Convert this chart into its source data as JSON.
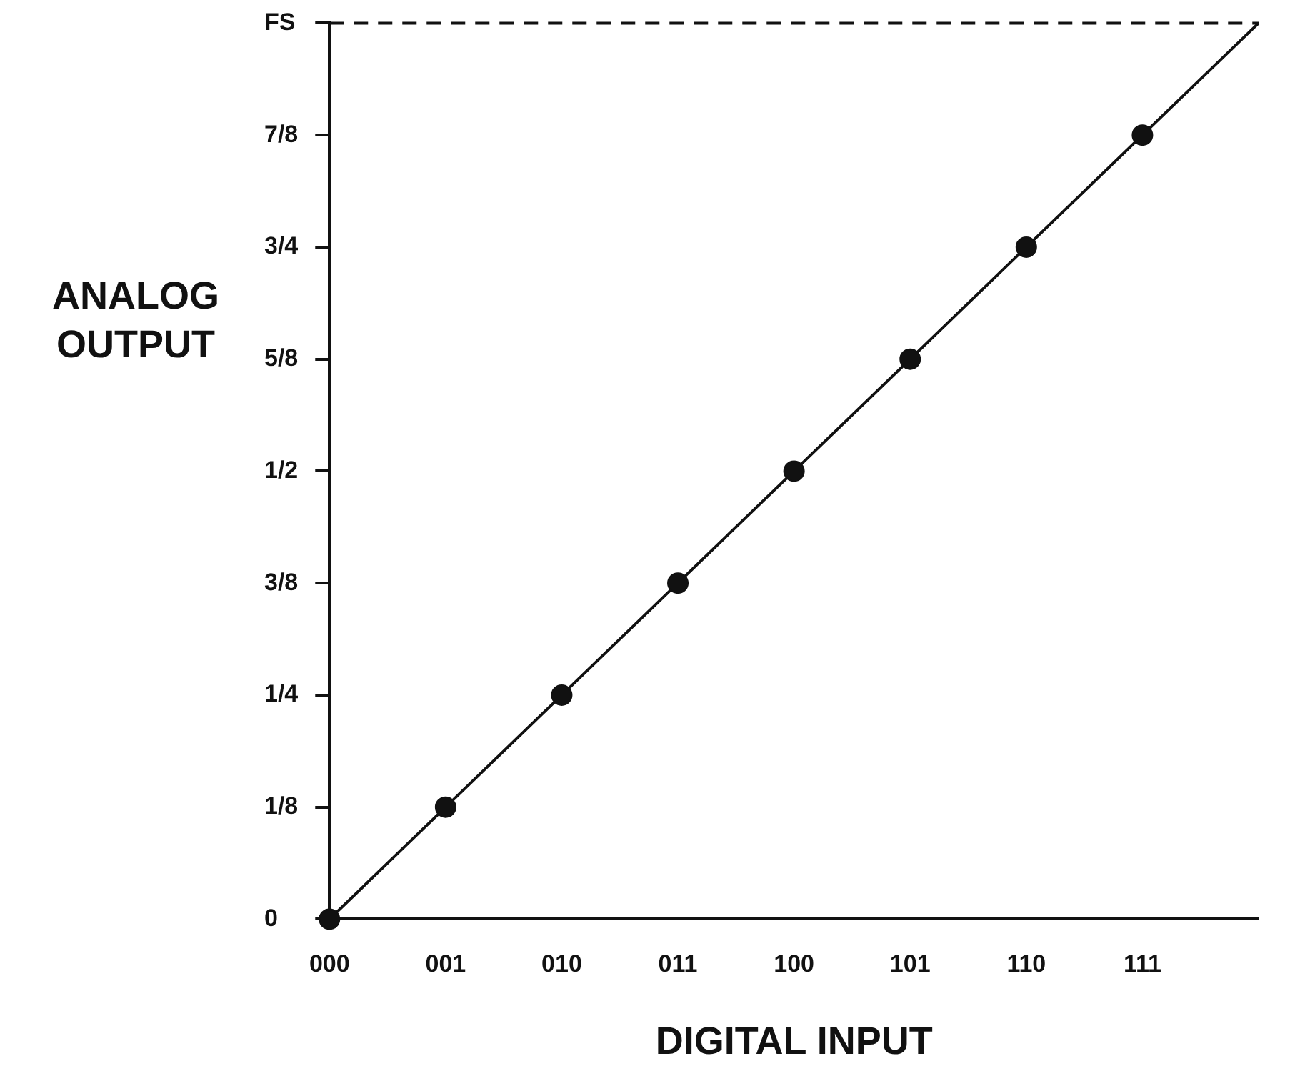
{
  "chart_data": {
    "type": "scatter",
    "xlabel": "DIGITAL INPUT",
    "ylabel": "ANALOG OUTPUT",
    "categories": [
      "000",
      "001",
      "010",
      "011",
      "100",
      "101",
      "110",
      "111",
      null
    ],
    "series": [
      {
        "color": "#111111",
        "values": [
          0,
          0.125,
          0.25,
          0.375,
          0.5,
          0.625,
          0.75,
          0.875,
          null
        ],
        "marker": "circle"
      },
      {
        "type": "line",
        "color": "#111111",
        "values": [
          0,
          0.125,
          0.25,
          0.375,
          0.5,
          0.625,
          0.75,
          0.875,
          1
        ],
        "line_style": "solid",
        "marker": "none"
      }
    ],
    "ylim": [
      0,
      1
    ],
    "yticks": [
      0,
      {
        "value": 0.125,
        "label": "1/8"
      },
      {
        "value": 0.25,
        "label": "1/4"
      },
      {
        "value": 0.375,
        "label": "3/8"
      },
      {
        "value": 0.5,
        "label": "1/2"
      },
      {
        "value": 0.625,
        "label": "5/8"
      },
      {
        "value": 0.75,
        "label": "3/4"
      },
      {
        "value": 0.875,
        "label": "7/8"
      },
      {
        "value": 1,
        "label": "FS"
      }
    ],
    "ref_lines": [
      {
        "axis": "y",
        "value": 1,
        "line_style": "dashed",
        "color": "#111111"
      }
    ],
    "grid": false,
    "legend": false
  }
}
